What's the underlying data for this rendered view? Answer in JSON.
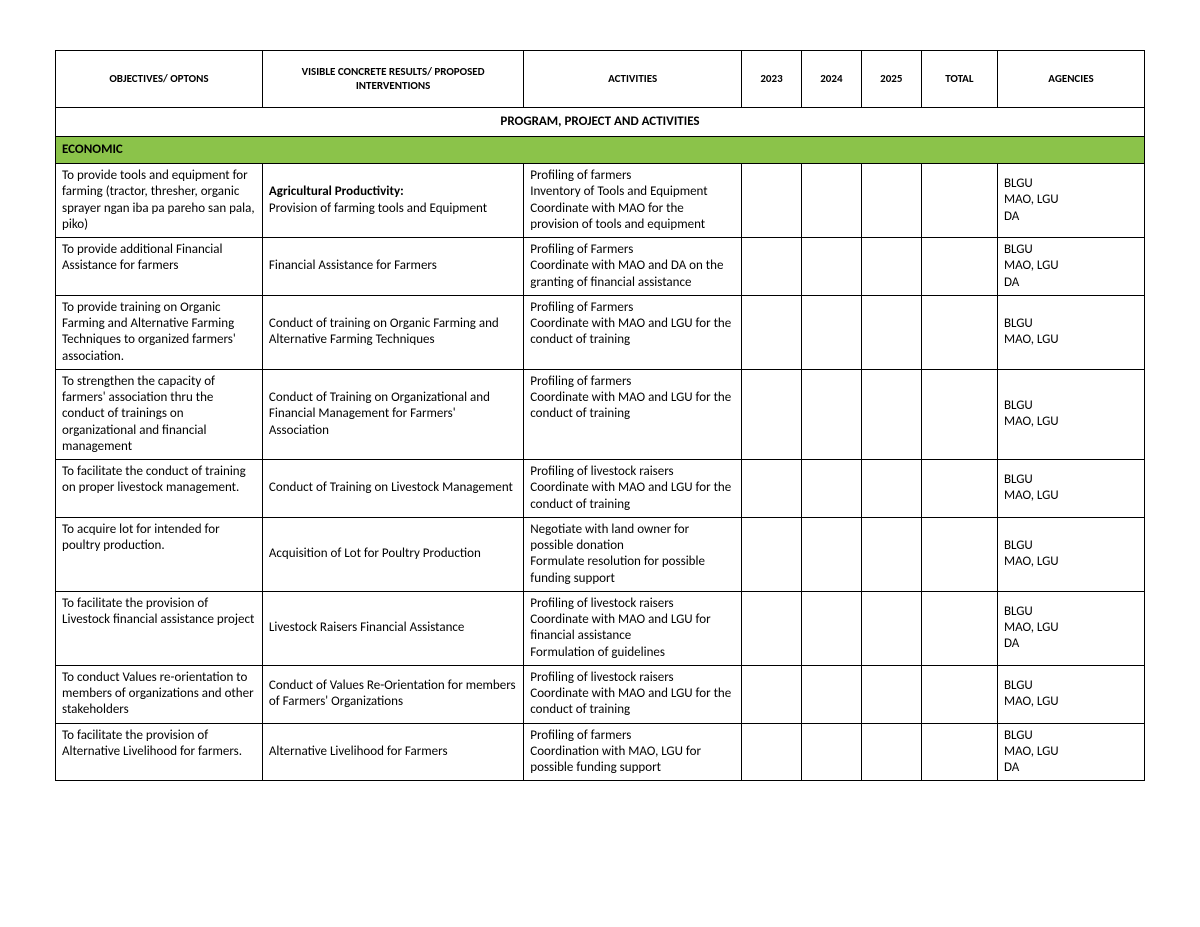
{
  "headers": {
    "objectives": "OBJECTIVES/ OPTONS",
    "interventions": "VISIBLE CONCRETE RESULTS/ PROPOSED INTERVENTIONS",
    "activities": "ACTIVITIES",
    "y2023": "2023",
    "y2024": "2024",
    "y2025": "2025",
    "total": "TOTAL",
    "agencies": "AGENCIES"
  },
  "section_title": "PROGRAM, PROJECT AND ACTIVITIES",
  "category": {
    "label": "ECONOMIC",
    "bg": "#8bc34a"
  },
  "rows": [
    {
      "objective": "To provide tools and equipment for farming (tractor, thresher, organic sprayer ngan iba pa pareho san pala, piko)",
      "intervention_bold": "Agricultural Productivity:",
      "intervention_rest": "Provision of farming tools and Equipment",
      "activities": "Profiling of farmers\nInventory of Tools and Equipment\nCoordinate with MAO for the provision of tools and equipment",
      "y2023": "",
      "y2024": "",
      "y2025": "",
      "total": "",
      "agencies": "BLGU\nMAO, LGU\nDA"
    },
    {
      "objective": "To provide additional Financial Assistance for farmers",
      "intervention_bold": "",
      "intervention_rest": "Financial Assistance for Farmers",
      "activities": "Profiling of Farmers\nCoordinate with MAO and DA on the granting of financial assistance",
      "y2023": "",
      "y2024": "",
      "y2025": "",
      "total": "",
      "agencies": "BLGU\nMAO, LGU\nDA"
    },
    {
      "objective": "To provide training on Organic Farming and Alternative Farming Techniques to organized farmers' association.",
      "intervention_bold": "",
      "intervention_rest": "Conduct of training on Organic Farming and Alternative Farming Techniques",
      "activities": "Profiling of Farmers\nCoordinate with MAO and LGU for the conduct of training",
      "y2023": "",
      "y2024": "",
      "y2025": "",
      "total": "",
      "agencies": "BLGU\nMAO, LGU"
    },
    {
      "objective": "To strengthen the capacity of farmers' association thru the conduct of trainings on organizational and financial management",
      "intervention_bold": "",
      "intervention_rest": "Conduct of Training on Organizational and Financial Management for Farmers' Association",
      "activities": "Profiling of farmers\nCoordinate with MAO and LGU for the conduct of training",
      "y2023": "",
      "y2024": "",
      "y2025": "",
      "total": "",
      "agencies": "BLGU\nMAO, LGU"
    },
    {
      "objective": "To facilitate the conduct of training on proper livestock management.",
      "intervention_bold": "",
      "intervention_rest": "Conduct of Training on Livestock Management",
      "activities": "Profiling of livestock raisers\nCoordinate with MAO and LGU for the conduct of training",
      "y2023": "",
      "y2024": "",
      "y2025": "",
      "total": "",
      "agencies": "BLGU\nMAO, LGU"
    },
    {
      "objective": "To acquire lot for intended for poultry production.",
      "intervention_bold": "",
      "intervention_rest": "Acquisition of Lot for Poultry Production",
      "activities": "Negotiate with land owner for possible donation\nFormulate resolution for possible funding support",
      "y2023": "",
      "y2024": "",
      "y2025": "",
      "total": "",
      "agencies": "BLGU\nMAO, LGU"
    },
    {
      "objective": "To facilitate the provision of Livestock financial assistance project",
      "intervention_bold": "",
      "intervention_rest": "Livestock Raisers Financial Assistance",
      "activities": "Profiling of livestock raisers\nCoordinate with MAO and LGU for financial assistance\nFormulation of guidelines",
      "y2023": "",
      "y2024": "",
      "y2025": "",
      "total": "",
      "agencies": "BLGU\nMAO, LGU\nDA"
    },
    {
      "objective": "To conduct Values re-orientation to members of organizations and other stakeholders",
      "intervention_bold": "",
      "intervention_rest": "Conduct of Values Re-Orientation for members of Farmers' Organizations",
      "activities": "Profiling of livestock raisers\nCoordinate with MAO and LGU for the conduct of training",
      "y2023": "",
      "y2024": "",
      "y2025": "",
      "total": "",
      "agencies": "BLGU\nMAO, LGU"
    },
    {
      "objective": "To facilitate the provision of Alternative Livelihood for farmers.",
      "intervention_bold": "",
      "intervention_rest": "Alternative Livelihood for Farmers",
      "activities": "Profiling of farmers\nCoordination with MAO, LGU for possible funding support",
      "y2023": "",
      "y2024": "",
      "y2025": "",
      "total": "",
      "agencies": "BLGU\nMAO, LGU\nDA"
    }
  ]
}
